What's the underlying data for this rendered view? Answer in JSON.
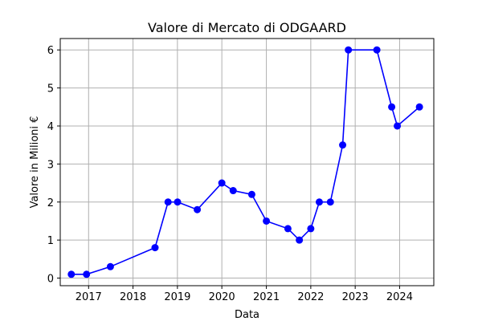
{
  "chart_data": {
    "type": "line",
    "title": "Valore di Mercato di ODGAARD",
    "xlabel": "Data",
    "ylabel": "Valore in Milioni €",
    "x_ticks": [
      "2017",
      "2018",
      "2019",
      "2020",
      "2021",
      "2022",
      "2023",
      "2024"
    ],
    "y_ticks": [
      "0",
      "1",
      "2",
      "3",
      "4",
      "5",
      "6"
    ],
    "xlim": [
      "2016-05-13",
      "2024-10-08"
    ],
    "ylim": [
      -0.2,
      6.3
    ],
    "grid": true,
    "series": [
      {
        "color": "#0000ff",
        "marker": "circle",
        "x": [
          "2016-08-12",
          "2016-12-15",
          "2017-06-29",
          "2018-07-01",
          "2018-10-16",
          "2019-01-02",
          "2019-06-13",
          "2020-01-01",
          "2020-04-03",
          "2020-09-03",
          "2021-01-01",
          "2021-06-27",
          "2021-09-29",
          "2022-01-01",
          "2022-03-12",
          "2022-06-11",
          "2022-09-20",
          "2022-11-06",
          "2023-06-28",
          "2023-10-28",
          "2023-12-13",
          "2024-06-12"
        ],
        "y": [
          0.1,
          0.1,
          0.3,
          0.8,
          2.0,
          2.0,
          1.8,
          2.5,
          2.3,
          2.2,
          1.5,
          1.3,
          1.0,
          1.3,
          2.0,
          2.0,
          3.5,
          6.0,
          6.0,
          4.5,
          4.0,
          4.5
        ]
      }
    ]
  }
}
